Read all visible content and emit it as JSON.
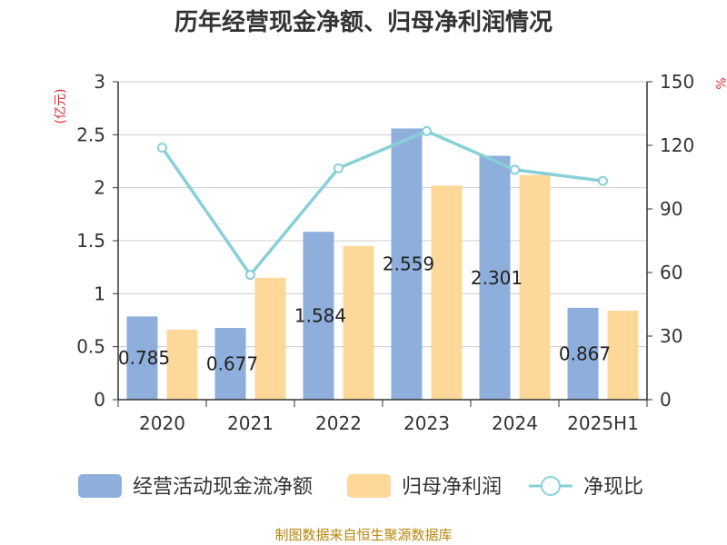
{
  "chart_data": {
    "type": "bar",
    "title": "历年经营现金净额、归母净利润情况",
    "categories": [
      "2020",
      "2021",
      "2022",
      "2023",
      "2024",
      "2025H1"
    ],
    "series": [
      {
        "name": "经营活动现金流净额",
        "type": "bar",
        "axis": "left",
        "color": "#8eaedb",
        "values": [
          0.785,
          0.677,
          1.584,
          2.559,
          2.301,
          0.867
        ],
        "data_labels": [
          "0.785",
          "0.677",
          "1.584",
          "2.559",
          "2.301",
          "0.867"
        ]
      },
      {
        "name": "归母净利润",
        "type": "bar",
        "axis": "left",
        "color": "#fdd899",
        "values": [
          0.66,
          1.15,
          1.45,
          2.02,
          2.12,
          0.84
        ]
      },
      {
        "name": "净现比",
        "type": "line",
        "axis": "right",
        "color": "#88d0d8",
        "values": [
          118.9,
          58.9,
          109.2,
          126.7,
          108.5,
          103.2
        ]
      }
    ],
    "y_left": {
      "unit": "(亿元)",
      "ylim": [
        0,
        3
      ],
      "ticks": [
        "0",
        "0.5",
        "1",
        "1.5",
        "2",
        "2.5",
        "3"
      ]
    },
    "y_right": {
      "unit": "%",
      "ylim": [
        0,
        150
      ],
      "ticks": [
        "0",
        "30",
        "60",
        "90",
        "120",
        "150"
      ]
    },
    "grid": true,
    "legend_position": "bottom",
    "source": "制图数据来自恒生聚源数据库"
  }
}
